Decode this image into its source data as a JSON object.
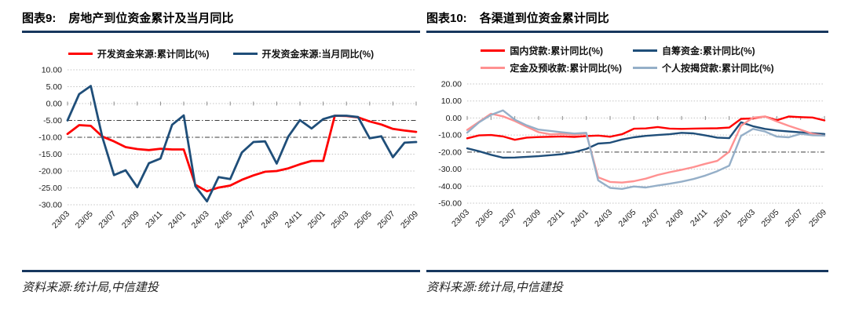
{
  "panels": [
    {
      "title_prefix": "图表9:",
      "title": "房地产到位资金累计及当月同比",
      "source": "资料来源:统计局,中信建投"
    },
    {
      "title_prefix": "图表10:",
      "title": "各渠道到位资金累计同比",
      "source": "资料来源:统计局,中信建投"
    }
  ],
  "colors": {
    "accent_rule": "#17375e",
    "red": "#ff0000",
    "navy": "#1f4e79",
    "pink": "#ff9191",
    "bluegrey": "#95afc8",
    "gridline": "#c3c3c3",
    "gridline_dark": "#3d3d3d"
  },
  "chart_data": [
    {
      "type": "line",
      "title": "房地产到位资金累计及当月同比",
      "x_tick_labels": [
        "23/03",
        "23/05",
        "23/07",
        "23/09",
        "23/11",
        "24/01",
        "24/03",
        "24/05",
        "24/07",
        "24/09",
        "24/11",
        "25/01",
        "25/03",
        "25/05",
        "25/07",
        "25/09"
      ],
      "points_per_tick": 2,
      "n_points": 31,
      "ylim": [
        -30,
        10
      ],
      "ystep": 5,
      "grid": true,
      "dark_gridlines": [
        -5,
        -10
      ],
      "legend_position": "top",
      "series": [
        {
          "name": "开发资金来源:累计同比(%)",
          "color": "#ff0000",
          "values": [
            -9.0,
            -6.4,
            -6.6,
            -9.8,
            -11.2,
            -12.9,
            -13.5,
            -13.8,
            -13.4,
            -13.6,
            -13.6,
            -24.1,
            -26.0,
            -24.9,
            -24.3,
            -22.6,
            -21.3,
            -20.2,
            -20.0,
            -19.2,
            -18.0,
            -17.0,
            -17.0,
            -3.6,
            -3.7,
            -4.1,
            -5.3,
            -6.2,
            -7.5,
            -8.0,
            -8.4
          ]
        },
        {
          "name": "开发资金来源:当月同比(%)",
          "color": "#1f4e79",
          "values": [
            -5.0,
            2.8,
            5.2,
            -10.0,
            -21.2,
            -19.8,
            -24.8,
            -17.7,
            -16.3,
            -6.3,
            -3.5,
            -24.5,
            -29.0,
            -21.8,
            -22.4,
            -14.5,
            -11.4,
            -11.2,
            -17.8,
            -9.8,
            -4.9,
            -7.4,
            -4.6,
            -3.6,
            -3.6,
            -4.0,
            -10.3,
            -9.7,
            -15.9,
            -11.6,
            -11.4
          ]
        }
      ]
    },
    {
      "type": "line",
      "title": "各渠道到位资金累计同比",
      "x_tick_labels": [
        "23/03",
        "23/05",
        "23/07",
        "23/09",
        "23/11",
        "24/01",
        "24/03",
        "24/05",
        "24/07",
        "24/09",
        "24/11",
        "25/01",
        "25/03",
        "25/05",
        "25/07",
        "25/09"
      ],
      "points_per_tick": 2,
      "n_points": 31,
      "ylim": [
        -50,
        20
      ],
      "ystep": 10,
      "grid": true,
      "dark_gridlines": [
        -20
      ],
      "legend_position": "top",
      "series": [
        {
          "name": "国内贷款:累计同比(%)",
          "color": "#ff0000",
          "values": [
            -11.9,
            -10.2,
            -10.0,
            -10.8,
            -12.8,
            -11.5,
            -11.2,
            -11.0,
            -10.8,
            -11.1,
            -10.6,
            -10.3,
            -11.0,
            -9.5,
            -6.3,
            -6.1,
            -5.3,
            -6.2,
            -6.4,
            -6.2,
            -6.1,
            -6.0,
            -5.6,
            -0.5,
            -0.2,
            0.9,
            -1.3,
            0.9,
            0.5,
            0.3,
            -1.4
          ]
        },
        {
          "name": "自筹资金:累计同比(%)",
          "color": "#1f4e79",
          "values": [
            -17.8,
            -19.5,
            -21.6,
            -23.3,
            -23.2,
            -22.8,
            -22.4,
            -21.8,
            -21.2,
            -20.0,
            -18.2,
            -15.0,
            -14.5,
            -12.6,
            -11.3,
            -10.5,
            -10.0,
            -9.5,
            -8.7,
            -9.0,
            -10.2,
            -11.5,
            -11.8,
            -2.5,
            -4.8,
            -6.4,
            -7.3,
            -7.9,
            -8.4,
            -8.9,
            -9.4
          ]
        },
        {
          "name": "定金及预收款:累计同比(%)",
          "color": "#ff9191",
          "values": [
            -7.0,
            -2.2,
            2.5,
            1.0,
            -1.8,
            -5.1,
            -8.3,
            -9.6,
            -9.3,
            -9.7,
            -9.1,
            -34.8,
            -37.5,
            -37.9,
            -37.1,
            -35.6,
            -33.4,
            -31.8,
            -30.4,
            -28.8,
            -26.9,
            -25.2,
            -19.8,
            -4.5,
            0.2,
            0.9,
            -2.0,
            -4.6,
            -6.9,
            -9.3,
            -10.4
          ]
        },
        {
          "name": "个人按揭贷款:累计同比(%)",
          "color": "#95afc8",
          "values": [
            -8.6,
            -2.5,
            1.8,
            4.5,
            -1.0,
            -4.3,
            -6.8,
            -7.6,
            -8.4,
            -9.1,
            -8.7,
            -36.6,
            -41.0,
            -41.6,
            -40.2,
            -40.8,
            -39.6,
            -38.6,
            -37.4,
            -35.8,
            -33.8,
            -31.2,
            -28.0,
            -10.5,
            -6.4,
            -7.9,
            -10.9,
            -11.3,
            -9.3,
            -10.1,
            -10.3
          ]
        }
      ]
    }
  ]
}
